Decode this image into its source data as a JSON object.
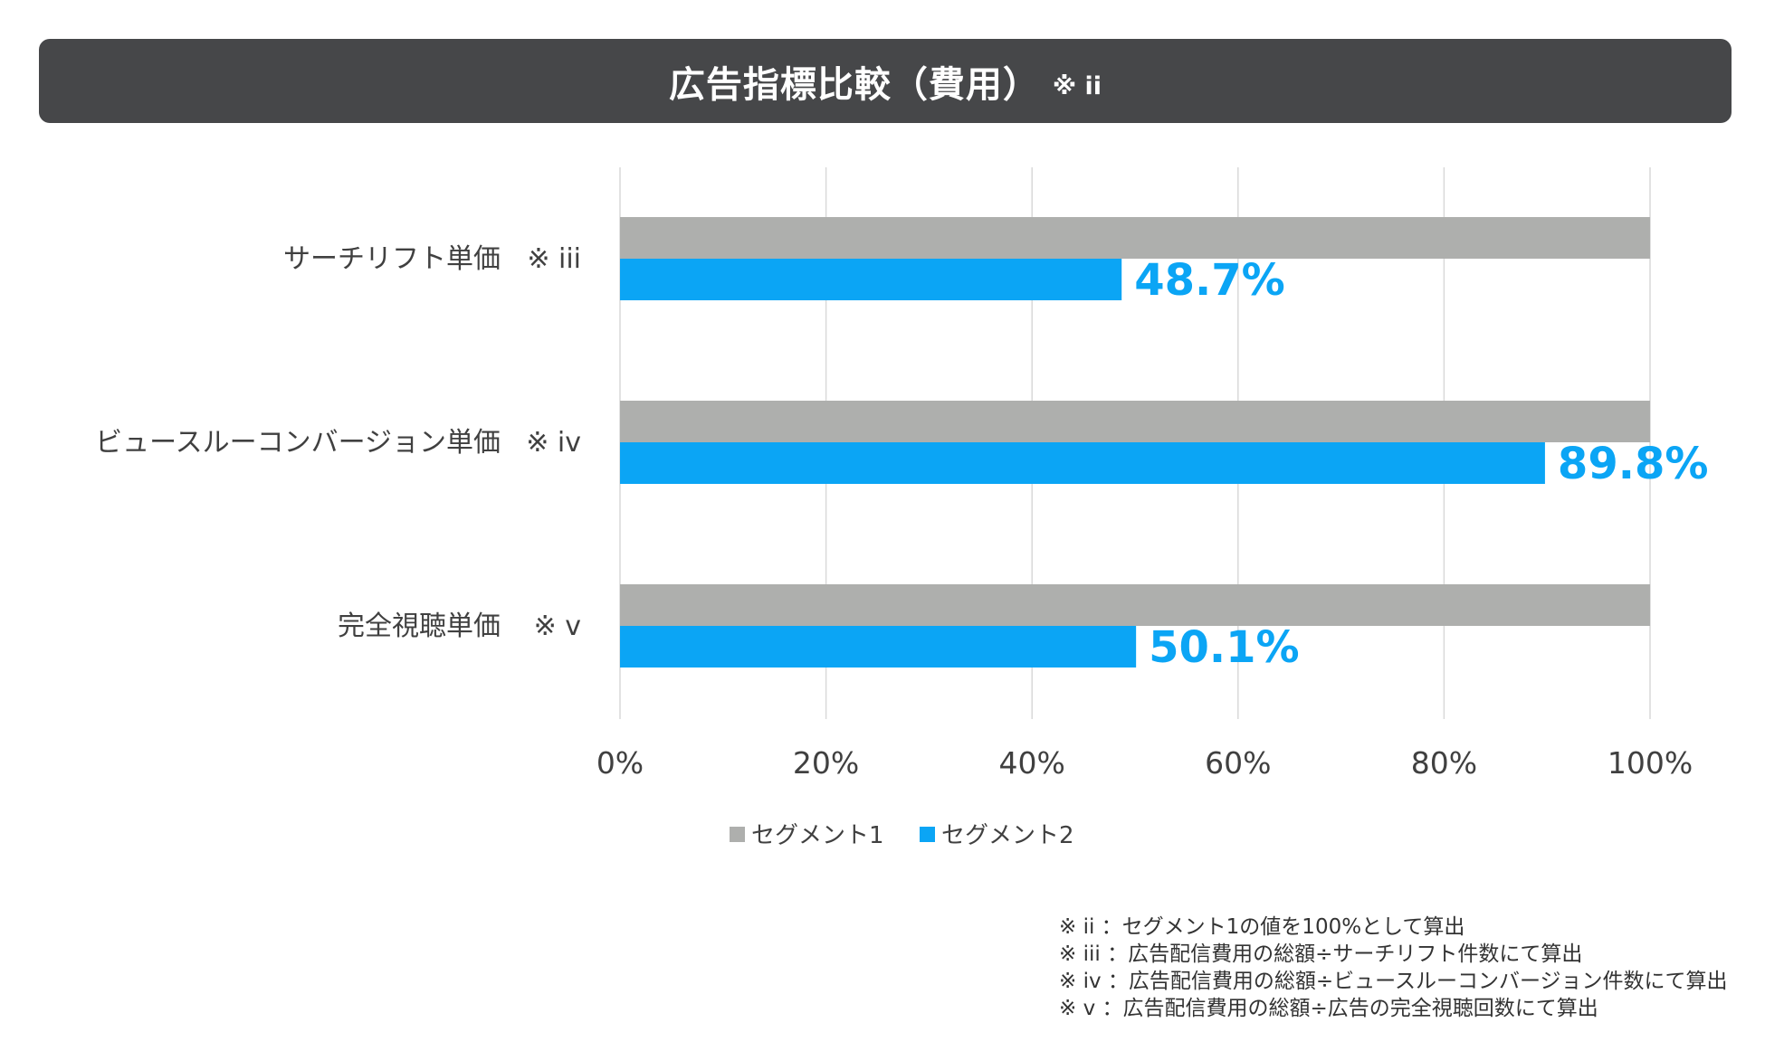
{
  "title": {
    "main": "広告指標比較（費用）",
    "note": "※ ii"
  },
  "chart_data": {
    "type": "bar",
    "orientation": "horizontal",
    "categories": [
      {
        "label": "サーチリフト単価",
        "note": "※ iii"
      },
      {
        "label": "ビュースルーコンバージョン単価",
        "note": "※ iv"
      },
      {
        "label": "完全視聴単価",
        "note": "※ v"
      }
    ],
    "series": [
      {
        "name": "セグメント1",
        "values": [
          100,
          100,
          100
        ],
        "color": "#AEAFAD",
        "show_labels": false
      },
      {
        "name": "セグメント2",
        "values": [
          48.7,
          89.8,
          50.1
        ],
        "color": "#0BA5F5",
        "show_labels": true
      }
    ],
    "data_labels": [
      "48.7%",
      "89.8%",
      "50.1%"
    ],
    "x_ticks": [
      "0%",
      "20%",
      "40%",
      "60%",
      "80%",
      "100%"
    ],
    "xlim": [
      0,
      100
    ],
    "grid": true,
    "legend_position": "bottom"
  },
  "footnotes": [
    "※ ii ：セグメント1の値を100%として算出",
    "※ iii ：広告配信費用の総額÷サーチリフト件数にて算出",
    "※ iv ：広告配信費用の総額÷ビュースルーコンバージョン件数にて算出",
    "※ v ：広告配信費用の総額÷広告の完全視聴回数にて算出"
  ]
}
